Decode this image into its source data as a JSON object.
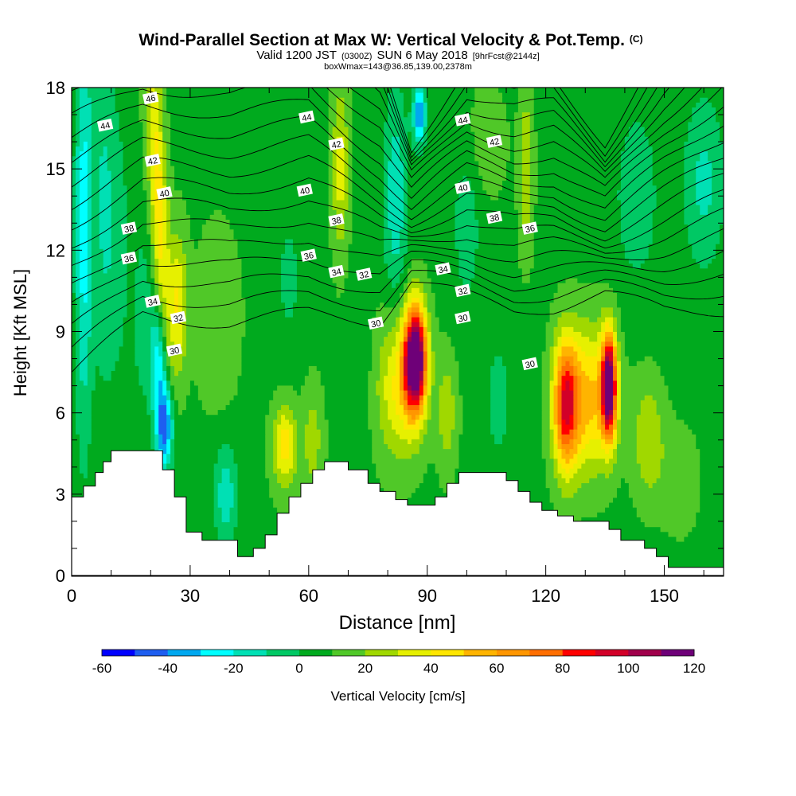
{
  "chart_data": {
    "type": "heatmap",
    "title": "Wind-Parallel Section at Max W: Vertical Velocity & Pot.Temp.",
    "title_mark": "(C)",
    "subtitle_valid": "Valid 1200 JST",
    "subtitle_utc": "(0300Z)",
    "subtitle_date": "SUN 6 May 2018",
    "subtitle_fcst": "[9hrFcst@2144z]",
    "subtitle2": "boxWmax=143@36.85,139.00,2378m",
    "xlabel": "Distance [nm]",
    "ylabel": "Height [Kft MSL]",
    "xlim": [
      0,
      165
    ],
    "ylim": [
      0,
      18
    ],
    "xticks": [
      0,
      30,
      60,
      90,
      120,
      150
    ],
    "yticks": [
      0,
      3,
      6,
      9,
      12,
      15,
      18
    ],
    "colorbar_label": "Vertical Velocity [cm/s]",
    "colorbar_ticks": [
      -60,
      -40,
      -20,
      0,
      20,
      40,
      60,
      80,
      100,
      120
    ],
    "colorbar_levels": [
      -60,
      -50,
      -40,
      -30,
      -20,
      -10,
      0,
      10,
      20,
      30,
      40,
      50,
      60,
      70,
      80,
      90,
      100,
      110,
      120,
      130
    ],
    "colorbar_colors": [
      "#0000ff",
      "#1e5ef0",
      "#00a8f0",
      "#00ffff",
      "#00e0b4",
      "#00c864",
      "#00aa1e",
      "#50c828",
      "#a0d800",
      "#e6f000",
      "#ffe600",
      "#ffb400",
      "#ff9600",
      "#ff6e00",
      "#ff0000",
      "#d20028",
      "#a0004b",
      "#6e0078"
    ],
    "terrain": [
      [
        0,
        2.9
      ],
      [
        1,
        2.9
      ],
      [
        1,
        2.9
      ],
      [
        3,
        2.9
      ],
      [
        3,
        3.3
      ],
      [
        6,
        3.3
      ],
      [
        6,
        3.8
      ],
      [
        8,
        3.8
      ],
      [
        8,
        4.2
      ],
      [
        10,
        4.2
      ],
      [
        10,
        4.6
      ],
      [
        23,
        4.6
      ],
      [
        23,
        3.9
      ],
      [
        26,
        3.9
      ],
      [
        26,
        2.9
      ],
      [
        29,
        2.9
      ],
      [
        29,
        1.6
      ],
      [
        33,
        1.6
      ],
      [
        33,
        1.3
      ],
      [
        42,
        1.3
      ],
      [
        42,
        0.7
      ],
      [
        46,
        0.7
      ],
      [
        46,
        1.0
      ],
      [
        49,
        1.0
      ],
      [
        49,
        1.5
      ],
      [
        52,
        1.5
      ],
      [
        52,
        2.3
      ],
      [
        55,
        2.3
      ],
      [
        55,
        2.9
      ],
      [
        58,
        2.9
      ],
      [
        58,
        3.4
      ],
      [
        61,
        3.4
      ],
      [
        61,
        3.9
      ],
      [
        64,
        3.9
      ],
      [
        64,
        4.2
      ],
      [
        70,
        4.2
      ],
      [
        70,
        3.9
      ],
      [
        75,
        3.9
      ],
      [
        75,
        3.4
      ],
      [
        78,
        3.4
      ],
      [
        78,
        3.1
      ],
      [
        82,
        3.1
      ],
      [
        82,
        2.8
      ],
      [
        85,
        2.8
      ],
      [
        85,
        2.6
      ],
      [
        92,
        2.6
      ],
      [
        92,
        2.9
      ],
      [
        95,
        2.9
      ],
      [
        95,
        3.4
      ],
      [
        98,
        3.4
      ],
      [
        98,
        3.8
      ],
      [
        110,
        3.8
      ],
      [
        110,
        3.5
      ],
      [
        113,
        3.5
      ],
      [
        113,
        3.1
      ],
      [
        116,
        3.1
      ],
      [
        116,
        2.7
      ],
      [
        119,
        2.7
      ],
      [
        119,
        2.4
      ],
      [
        123,
        2.4
      ],
      [
        123,
        2.2
      ],
      [
        127,
        2.2
      ],
      [
        127,
        2.0
      ],
      [
        136,
        2.0
      ],
      [
        136,
        1.7
      ],
      [
        139,
        1.7
      ],
      [
        139,
        1.3
      ],
      [
        145,
        1.3
      ],
      [
        145,
        1.0
      ],
      [
        148,
        1.0
      ],
      [
        148,
        0.7
      ],
      [
        151,
        0.7
      ],
      [
        151,
        0.3
      ],
      [
        165,
        0.3
      ]
    ],
    "features": [
      {
        "x": 0,
        "z": 0,
        "a": 8,
        "sx": 400,
        "sz": 400
      },
      {
        "x": 3,
        "z": 13,
        "a": -32,
        "sx": 2.2,
        "sz": 8
      },
      {
        "x": 8,
        "z": 14,
        "a": -18,
        "sx": 3,
        "sz": 7
      },
      {
        "x": 12,
        "z": 12,
        "a": -12,
        "sx": 3,
        "sz": 5
      },
      {
        "x": 22,
        "z": 14,
        "a": 38,
        "sx": 2.2,
        "sz": 6,
        "tilt": -0.35
      },
      {
        "x": 27,
        "z": 10,
        "a": 32,
        "sx": 2.3,
        "sz": 2.5
      },
      {
        "x": 18,
        "z": 9.5,
        "a": -16,
        "sx": 2.2,
        "sz": 3
      },
      {
        "x": 23.5,
        "z": 5.5,
        "a": -55,
        "sx": 2.2,
        "sz": 1.6
      },
      {
        "x": 22,
        "z": 8,
        "a": -35,
        "sx": 2.2,
        "sz": 2
      },
      {
        "x": 37,
        "z": 9.5,
        "a": 12,
        "sx": 5,
        "sz": 3
      },
      {
        "x": 39,
        "z": 3,
        "a": -25,
        "sx": 3,
        "sz": 1.8
      },
      {
        "x": 54,
        "z": 4.8,
        "a": 38,
        "sx": 3,
        "sz": 1.5
      },
      {
        "x": 55,
        "z": 11,
        "a": -10,
        "sx": 4,
        "sz": 3
      },
      {
        "x": 68,
        "z": 15,
        "a": 28,
        "sx": 2,
        "sz": 3
      },
      {
        "x": 61,
        "z": 5,
        "a": 18,
        "sx": 2.5,
        "sz": 2
      },
      {
        "x": 73,
        "z": 8,
        "a": -8,
        "sx": 2.5,
        "sz": 3
      },
      {
        "x": 87,
        "z": 8,
        "a": 125,
        "sx": 2.8,
        "sz": 1.9
      },
      {
        "x": 83,
        "z": 7,
        "a": 35,
        "sx": 5.5,
        "sz": 2.6
      },
      {
        "x": 82,
        "z": 14,
        "a": -25,
        "sx": 3,
        "sz": 4
      },
      {
        "x": 88,
        "z": 17,
        "a": -48,
        "sx": 1.6,
        "sz": 1.1
      },
      {
        "x": 95,
        "z": 6,
        "a": 20,
        "sx": 2.5,
        "sz": 2
      },
      {
        "x": 100,
        "z": 13,
        "a": -14,
        "sx": 3.5,
        "sz": 3
      },
      {
        "x": 108,
        "z": 6.5,
        "a": -12,
        "sx": 3,
        "sz": 2.5
      },
      {
        "x": 115,
        "z": 15,
        "a": 22,
        "sx": 1.8,
        "sz": 3
      },
      {
        "x": 125,
        "z": 6.3,
        "a": 75,
        "sx": 3.2,
        "sz": 2.4
      },
      {
        "x": 136,
        "z": 7,
        "a": 112,
        "sx": 1.9,
        "sz": 1.9
      },
      {
        "x": 131,
        "z": 6.5,
        "a": 45,
        "sx": 6,
        "sz": 2.6
      },
      {
        "x": 146,
        "z": 5,
        "a": 22,
        "sx": 4,
        "sz": 2.2
      },
      {
        "x": 143,
        "z": 14,
        "a": -16,
        "sx": 5,
        "sz": 3
      },
      {
        "x": 160,
        "z": 14.5,
        "a": -20,
        "sx": 5,
        "sz": 3
      },
      {
        "x": 105,
        "z": 16,
        "a": 10,
        "sx": 5,
        "sz": 2
      },
      {
        "x": 154,
        "z": 3.5,
        "a": 10,
        "sx": 5,
        "sz": 2
      }
    ],
    "theta_levels": [
      30,
      31,
      32,
      33,
      34,
      35,
      36,
      37,
      38,
      39,
      40,
      41,
      42,
      43,
      44,
      45,
      46,
      47,
      48
    ],
    "theta_pts": [
      [
        0,
        7.5,
        1.0
      ],
      [
        18,
        9.6,
        0.9
      ],
      [
        40,
        9.3,
        0.9
      ],
      [
        60,
        9.7,
        0.9
      ],
      [
        78,
        9.4,
        0.7
      ],
      [
        86,
        10.9,
        0.35
      ],
      [
        100,
        10.3,
        0.6
      ],
      [
        112,
        9.8,
        0.6
      ],
      [
        122,
        9.9,
        0.6
      ],
      [
        135,
        10.4,
        0.4
      ],
      [
        150,
        9.8,
        0.7
      ],
      [
        165,
        9.8,
        0.9
      ]
    ],
    "contour_labels": [
      {
        "text": "46",
        "x": 20,
        "z": 17.6
      },
      {
        "text": "44",
        "x": 8.5,
        "z": 16.6
      },
      {
        "text": "42",
        "x": 20.5,
        "z": 15.3
      },
      {
        "text": "40",
        "x": 23.5,
        "z": 14.1
      },
      {
        "text": "38",
        "x": 14.5,
        "z": 12.8
      },
      {
        "text": "36",
        "x": 14.5,
        "z": 11.7
      },
      {
        "text": "34",
        "x": 20.5,
        "z": 10.1
      },
      {
        "text": "32",
        "x": 27,
        "z": 9.5
      },
      {
        "text": "30",
        "x": 26,
        "z": 8.3
      },
      {
        "text": "44",
        "x": 59.5,
        "z": 16.9
      },
      {
        "text": "42",
        "x": 67,
        "z": 15.9
      },
      {
        "text": "40",
        "x": 59,
        "z": 14.2
      },
      {
        "text": "38",
        "x": 67,
        "z": 13.1
      },
      {
        "text": "36",
        "x": 60,
        "z": 11.8
      },
      {
        "text": "34",
        "x": 67,
        "z": 11.2
      },
      {
        "text": "32",
        "x": 74,
        "z": 11.1
      },
      {
        "text": "30",
        "x": 77,
        "z": 9.3
      },
      {
        "text": "44",
        "x": 99,
        "z": 16.8
      },
      {
        "text": "42",
        "x": 107,
        "z": 16.0
      },
      {
        "text": "40",
        "x": 99,
        "z": 14.3
      },
      {
        "text": "38",
        "x": 107,
        "z": 13.2
      },
      {
        "text": "36",
        "x": 116,
        "z": 12.8
      },
      {
        "text": "34",
        "x": 94,
        "z": 11.3
      },
      {
        "text": "32",
        "x": 99,
        "z": 10.5
      },
      {
        "text": "30",
        "x": 99,
        "z": 9.5
      },
      {
        "text": "30",
        "x": 116,
        "z": 7.8
      }
    ]
  }
}
